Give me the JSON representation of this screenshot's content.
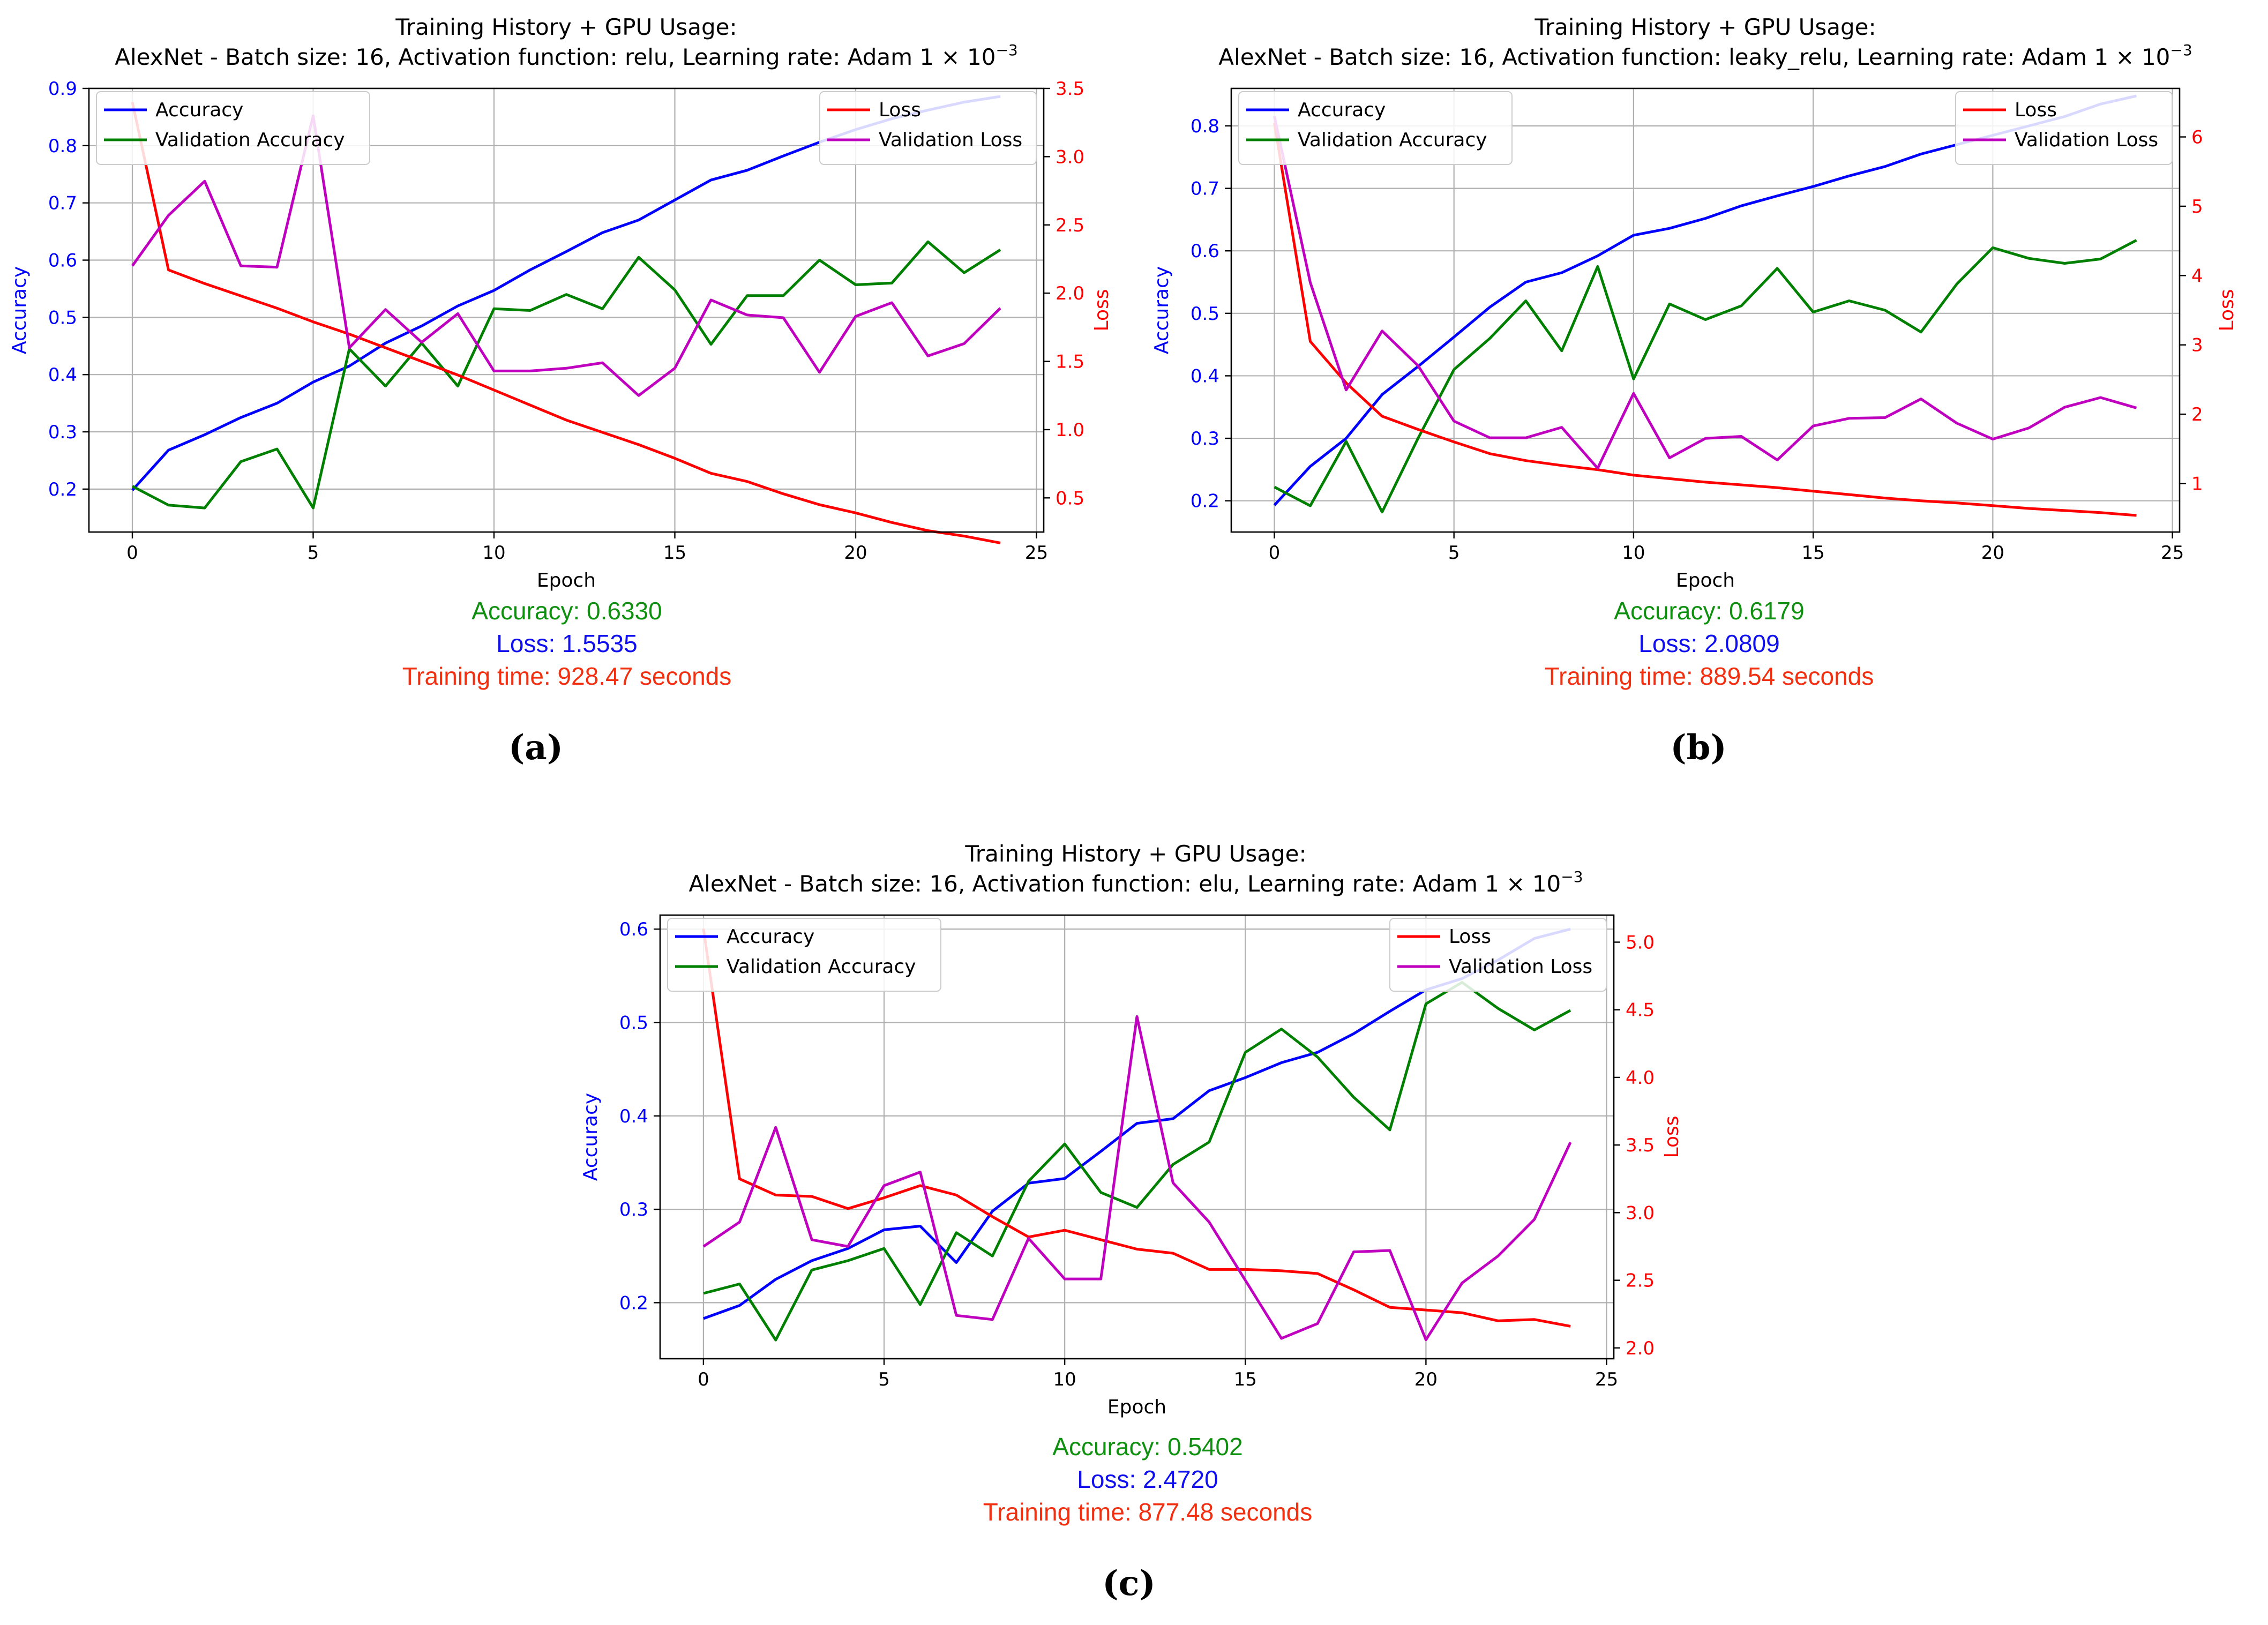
{
  "chart_data": [
    {
      "type": "line",
      "title_line1": "Training History + GPU Usage:",
      "title_line2": "AlexNet - Batch size: 16, Activation function: relu, Learning rate: Adam 1 × 10",
      "title_exp": "−3",
      "xlabel": "Epoch",
      "ylabel_left": "Accuracy",
      "ylabel_right": "Loss",
      "x": [
        0,
        1,
        2,
        3,
        4,
        5,
        6,
        7,
        8,
        9,
        10,
        11,
        12,
        13,
        14,
        15,
        16,
        17,
        18,
        19,
        20,
        21,
        22,
        23,
        24
      ],
      "xlim": [
        -1.2,
        25.2
      ],
      "xticks": [
        0,
        5,
        10,
        15,
        20,
        25
      ],
      "ylim_left": [
        0.125,
        0.9
      ],
      "yticks_left": [
        "0.2",
        "0.3",
        "0.4",
        "0.5",
        "0.6",
        "0.7",
        "0.8",
        "0.9"
      ],
      "ylim_right": [
        0.25,
        3.5
      ],
      "yticks_right": [
        "0.5",
        "1.0",
        "1.5",
        "2.0",
        "2.5",
        "3.0",
        "3.5"
      ],
      "series": [
        {
          "name": "Accuracy",
          "axis": "left",
          "color": "#0000ff",
          "values": [
            0.198,
            0.268,
            0.295,
            0.325,
            0.35,
            0.387,
            0.415,
            0.455,
            0.485,
            0.52,
            0.547,
            0.583,
            0.615,
            0.648,
            0.67,
            0.705,
            0.74,
            0.757,
            0.782,
            0.806,
            0.828,
            0.847,
            0.862,
            0.876,
            0.886
          ]
        },
        {
          "name": "Validation Accuracy",
          "axis": "left",
          "color": "#008000",
          "values": [
            0.205,
            0.172,
            0.167,
            0.248,
            0.27,
            0.167,
            0.445,
            0.38,
            0.455,
            0.38,
            0.515,
            0.512,
            0.54,
            0.515,
            0.605,
            0.548,
            0.453,
            0.538,
            0.538,
            0.6,
            0.557,
            0.56,
            0.632,
            0.578,
            0.618
          ]
        },
        {
          "name": "Loss",
          "axis": "right",
          "color": "#ff0000",
          "values": [
            3.4,
            2.17,
            2.07,
            1.98,
            1.89,
            1.79,
            1.7,
            1.6,
            1.5,
            1.4,
            1.29,
            1.18,
            1.07,
            0.98,
            0.89,
            0.79,
            0.68,
            0.62,
            0.53,
            0.45,
            0.39,
            0.32,
            0.26,
            0.22,
            0.17
          ]
        },
        {
          "name": "Validation Loss",
          "axis": "right",
          "color": "#bf00bf",
          "values": [
            2.2,
            2.57,
            2.82,
            2.2,
            2.19,
            3.3,
            1.6,
            1.88,
            1.64,
            1.85,
            1.43,
            1.43,
            1.45,
            1.49,
            1.25,
            1.45,
            1.95,
            1.84,
            1.82,
            1.42,
            1.83,
            1.93,
            1.54,
            1.63,
            1.89
          ]
        }
      ],
      "legend_left": "upper left",
      "legend_right": "upper right",
      "grid": true,
      "stats": {
        "accuracy": "Accuracy: 0.6330",
        "loss": "Loss: 1.5535",
        "time": "Training time: 928.47 seconds"
      },
      "caption": "(a)"
    },
    {
      "type": "line",
      "title_line1": "Training History + GPU Usage:",
      "title_line2": "AlexNet - Batch size: 16, Activation function: leaky_relu, Learning rate: Adam 1 × 10",
      "title_exp": "−3",
      "xlabel": "Epoch",
      "ylabel_left": "Accuracy",
      "ylabel_right": "Loss",
      "x": [
        0,
        1,
        2,
        3,
        4,
        5,
        6,
        7,
        8,
        9,
        10,
        11,
        12,
        13,
        14,
        15,
        16,
        17,
        18,
        19,
        20,
        21,
        22,
        23,
        24
      ],
      "xlim": [
        -1.2,
        25.2
      ],
      "xticks": [
        0,
        5,
        10,
        15,
        20,
        25
      ],
      "ylim_left": [
        0.15,
        0.86
      ],
      "yticks_left": [
        "0.2",
        "0.3",
        "0.4",
        "0.5",
        "0.6",
        "0.7",
        "0.8"
      ],
      "ylim_right": [
        0.3,
        6.7
      ],
      "yticks_right": [
        "1",
        "2",
        "3",
        "4",
        "5",
        "6"
      ],
      "series": [
        {
          "name": "Accuracy",
          "axis": "left",
          "color": "#0000ff",
          "values": [
            0.193,
            0.255,
            0.3,
            0.37,
            0.415,
            0.462,
            0.51,
            0.55,
            0.565,
            0.592,
            0.625,
            0.636,
            0.652,
            0.672,
            0.688,
            0.703,
            0.72,
            0.735,
            0.755,
            0.77,
            0.785,
            0.8,
            0.815,
            0.835,
            0.848
          ]
        },
        {
          "name": "Validation Accuracy",
          "axis": "left",
          "color": "#008000",
          "values": [
            0.222,
            0.192,
            0.295,
            0.182,
            0.3,
            0.41,
            0.46,
            0.52,
            0.44,
            0.575,
            0.395,
            0.515,
            0.49,
            0.512,
            0.572,
            0.502,
            0.52,
            0.505,
            0.47,
            0.547,
            0.605,
            0.588,
            0.58,
            0.587,
            0.617
          ]
        },
        {
          "name": "Loss",
          "axis": "right",
          "color": "#ff0000",
          "values": [
            6.2,
            3.05,
            2.45,
            1.97,
            1.78,
            1.6,
            1.43,
            1.33,
            1.26,
            1.2,
            1.12,
            1.07,
            1.02,
            0.98,
            0.94,
            0.89,
            0.84,
            0.79,
            0.75,
            0.72,
            0.68,
            0.64,
            0.61,
            0.58,
            0.54
          ]
        },
        {
          "name": "Validation Loss",
          "axis": "right",
          "color": "#bf00bf",
          "values": [
            6.3,
            3.9,
            2.35,
            3.2,
            2.7,
            1.9,
            1.66,
            1.66,
            1.81,
            1.22,
            2.3,
            1.37,
            1.65,
            1.68,
            1.34,
            1.83,
            1.94,
            1.95,
            2.22,
            1.87,
            1.64,
            1.8,
            2.1,
            2.24,
            2.09
          ]
        }
      ],
      "legend_left": "upper left",
      "legend_right": "upper right",
      "grid": true,
      "stats": {
        "accuracy": "Accuracy: 0.6179",
        "loss": "Loss: 2.0809",
        "time": "Training time: 889.54 seconds"
      },
      "caption": "(b)"
    },
    {
      "type": "line",
      "title_line1": "Training History + GPU Usage:",
      "title_line2": "AlexNet - Batch size: 16, Activation function: elu, Learning rate: Adam 1 × 10",
      "title_exp": "−3",
      "xlabel": "Epoch",
      "ylabel_left": "Accuracy",
      "ylabel_right": "Loss",
      "x": [
        0,
        1,
        2,
        3,
        4,
        5,
        6,
        7,
        8,
        9,
        10,
        11,
        12,
        13,
        14,
        15,
        16,
        17,
        18,
        19,
        20,
        21,
        22,
        23,
        24
      ],
      "xlim": [
        -1.2,
        25.2
      ],
      "xticks": [
        0,
        5,
        10,
        15,
        20,
        25
      ],
      "ylim_left": [
        0.14,
        0.615
      ],
      "yticks_left": [
        "0.2",
        "0.3",
        "0.4",
        "0.5",
        "0.6"
      ],
      "ylim_right": [
        1.92,
        5.2
      ],
      "yticks_right": [
        "2.0",
        "2.5",
        "3.0",
        "3.5",
        "4.0",
        "4.5",
        "5.0"
      ],
      "series": [
        {
          "name": "Accuracy",
          "axis": "left",
          "color": "#0000ff",
          "values": [
            0.183,
            0.197,
            0.225,
            0.245,
            0.258,
            0.278,
            0.282,
            0.243,
            0.298,
            0.328,
            0.333,
            0.362,
            0.392,
            0.397,
            0.427,
            0.441,
            0.457,
            0.468,
            0.488,
            0.512,
            0.535,
            0.547,
            0.567,
            0.59,
            0.6
          ]
        },
        {
          "name": "Validation Accuracy",
          "axis": "left",
          "color": "#008000",
          "values": [
            0.21,
            0.22,
            0.16,
            0.235,
            0.245,
            0.258,
            0.198,
            0.275,
            0.25,
            0.33,
            0.37,
            0.318,
            0.302,
            0.348,
            0.372,
            0.468,
            0.493,
            0.463,
            0.42,
            0.385,
            0.52,
            0.543,
            0.515,
            0.492,
            0.513
          ]
        },
        {
          "name": "Loss",
          "axis": "right",
          "color": "#ff0000",
          "values": [
            5.1,
            3.25,
            3.13,
            3.12,
            3.03,
            3.11,
            3.2,
            3.13,
            2.97,
            2.82,
            2.87,
            2.8,
            2.73,
            2.7,
            2.58,
            2.58,
            2.57,
            2.55,
            2.43,
            2.3,
            2.28,
            2.26,
            2.2,
            2.21,
            2.16
          ]
        },
        {
          "name": "Validation Loss",
          "axis": "right",
          "color": "#bf00bf",
          "values": [
            2.75,
            2.93,
            3.63,
            2.8,
            2.75,
            3.2,
            3.3,
            2.24,
            2.21,
            2.81,
            2.51,
            2.51,
            4.45,
            3.22,
            2.93,
            2.5,
            2.07,
            2.18,
            2.71,
            2.72,
            2.06,
            2.48,
            2.68,
            2.95,
            3.52
          ]
        }
      ],
      "legend_left": "upper left",
      "legend_right": "upper right",
      "grid": true,
      "stats": {
        "accuracy": "Accuracy: 0.5402",
        "loss": "Loss: 2.4720",
        "time": "Training time: 877.48 seconds"
      },
      "caption": "(c)"
    }
  ],
  "colors": {
    "stats_accuracy": "#109010",
    "stats_loss": "#1010ee",
    "stats_time": "#f03010",
    "left_axis": "#0000ff",
    "right_axis": "#ff0000"
  }
}
